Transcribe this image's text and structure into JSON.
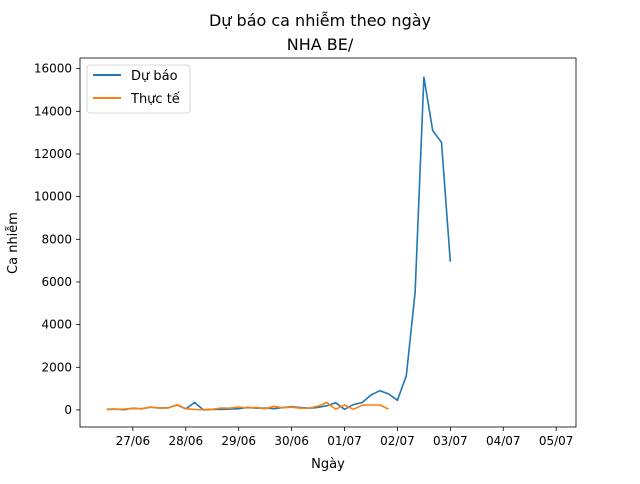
{
  "chart_data": {
    "type": "line",
    "title": "Dự báo ca nhiễm theo ngày",
    "subtitle": "NHA BE/",
    "xlabel": "Ngày",
    "ylabel": "Ca nhiễm",
    "xlim": [
      "2021-06-26",
      "2021-07-05T09:00"
    ],
    "ylim": [
      -800,
      16500
    ],
    "x_ticks": [
      {
        "date": "2021-06-27",
        "label": "27/06"
      },
      {
        "date": "2021-06-28",
        "label": "28/06"
      },
      {
        "date": "2021-06-29",
        "label": "29/06"
      },
      {
        "date": "2021-06-30",
        "label": "30/06"
      },
      {
        "date": "2021-07-01",
        "label": "01/07"
      },
      {
        "date": "2021-07-02",
        "label": "02/07"
      },
      {
        "date": "2021-07-03",
        "label": "03/07"
      },
      {
        "date": "2021-07-04",
        "label": "04/07"
      },
      {
        "date": "2021-07-05",
        "label": "05/07"
      }
    ],
    "y_ticks": [
      0,
      2000,
      4000,
      6000,
      8000,
      10000,
      12000,
      14000,
      16000
    ],
    "legend_position": "top-left",
    "grid": false,
    "series": [
      {
        "name": "Dự báo",
        "color": "#1f77b4",
        "points": [
          {
            "x": "2021-06-26T12:00",
            "y": 30
          },
          {
            "x": "2021-06-26T16:00",
            "y": 40
          },
          {
            "x": "2021-06-26T20:00",
            "y": 10
          },
          {
            "x": "2021-06-27T00:00",
            "y": 80
          },
          {
            "x": "2021-06-27T04:00",
            "y": 50
          },
          {
            "x": "2021-06-27T08:00",
            "y": 130
          },
          {
            "x": "2021-06-27T12:00",
            "y": 90
          },
          {
            "x": "2021-06-27T16:00",
            "y": 100
          },
          {
            "x": "2021-06-27T20:00",
            "y": 230
          },
          {
            "x": "2021-06-28T00:00",
            "y": 50
          },
          {
            "x": "2021-06-28T04:00",
            "y": 350
          },
          {
            "x": "2021-06-28T08:00",
            "y": 0
          },
          {
            "x": "2021-06-28T12:00",
            "y": 20
          },
          {
            "x": "2021-06-28T16:00",
            "y": 30
          },
          {
            "x": "2021-06-28T20:00",
            "y": 40
          },
          {
            "x": "2021-06-29T00:00",
            "y": 60
          },
          {
            "x": "2021-06-29T04:00",
            "y": 120
          },
          {
            "x": "2021-06-29T08:00",
            "y": 80
          },
          {
            "x": "2021-06-29T12:00",
            "y": 90
          },
          {
            "x": "2021-06-29T16:00",
            "y": 60
          },
          {
            "x": "2021-06-29T20:00",
            "y": 110
          },
          {
            "x": "2021-06-30T00:00",
            "y": 150
          },
          {
            "x": "2021-06-30T04:00",
            "y": 110
          },
          {
            "x": "2021-06-30T08:00",
            "y": 80
          },
          {
            "x": "2021-06-30T12:00",
            "y": 120
          },
          {
            "x": "2021-06-30T16:00",
            "y": 200
          },
          {
            "x": "2021-06-30T20:00",
            "y": 340
          },
          {
            "x": "2021-07-01T00:00",
            "y": 30
          },
          {
            "x": "2021-07-01T04:00",
            "y": 250
          },
          {
            "x": "2021-07-01T08:00",
            "y": 350
          },
          {
            "x": "2021-07-01T12:00",
            "y": 700
          },
          {
            "x": "2021-07-01T16:00",
            "y": 900
          },
          {
            "x": "2021-07-01T20:00",
            "y": 750
          },
          {
            "x": "2021-07-02T00:00",
            "y": 450
          },
          {
            "x": "2021-07-02T04:00",
            "y": 1600
          },
          {
            "x": "2021-07-02T08:00",
            "y": 5500
          },
          {
            "x": "2021-07-02T12:00",
            "y": 15600
          },
          {
            "x": "2021-07-02T16:00",
            "y": 13100
          },
          {
            "x": "2021-07-02T20:00",
            "y": 12550
          },
          {
            "x": "2021-07-03T00:00",
            "y": 6950
          }
        ]
      },
      {
        "name": "Thực tế",
        "color": "#ff7f0e",
        "points": [
          {
            "x": "2021-06-26T12:00",
            "y": 20
          },
          {
            "x": "2021-06-26T16:00",
            "y": 30
          },
          {
            "x": "2021-06-26T20:00",
            "y": 40
          },
          {
            "x": "2021-06-27T00:00",
            "y": 70
          },
          {
            "x": "2021-06-27T04:00",
            "y": 60
          },
          {
            "x": "2021-06-27T08:00",
            "y": 140
          },
          {
            "x": "2021-06-27T12:00",
            "y": 80
          },
          {
            "x": "2021-06-27T16:00",
            "y": 90
          },
          {
            "x": "2021-06-27T20:00",
            "y": 250
          },
          {
            "x": "2021-06-28T00:00",
            "y": 60
          },
          {
            "x": "2021-06-28T04:00",
            "y": 20
          },
          {
            "x": "2021-06-28T08:00",
            "y": 10
          },
          {
            "x": "2021-06-28T12:00",
            "y": 30
          },
          {
            "x": "2021-06-28T16:00",
            "y": 90
          },
          {
            "x": "2021-06-28T20:00",
            "y": 80
          },
          {
            "x": "2021-06-29T00:00",
            "y": 140
          },
          {
            "x": "2021-06-29T04:00",
            "y": 90
          },
          {
            "x": "2021-06-29T08:00",
            "y": 110
          },
          {
            "x": "2021-06-29T12:00",
            "y": 60
          },
          {
            "x": "2021-06-29T16:00",
            "y": 170
          },
          {
            "x": "2021-06-29T20:00",
            "y": 100
          },
          {
            "x": "2021-06-30T00:00",
            "y": 130
          },
          {
            "x": "2021-06-30T04:00",
            "y": 80
          },
          {
            "x": "2021-06-30T08:00",
            "y": 90
          },
          {
            "x": "2021-06-30T12:00",
            "y": 180
          },
          {
            "x": "2021-06-30T16:00",
            "y": 350
          },
          {
            "x": "2021-06-30T20:00",
            "y": 30
          },
          {
            "x": "2021-07-01T00:00",
            "y": 230
          },
          {
            "x": "2021-07-01T04:00",
            "y": 30
          },
          {
            "x": "2021-07-01T08:00",
            "y": 220
          },
          {
            "x": "2021-07-01T12:00",
            "y": 230
          },
          {
            "x": "2021-07-01T16:00",
            "y": 230
          },
          {
            "x": "2021-07-01T20:00",
            "y": 40
          }
        ]
      }
    ]
  }
}
